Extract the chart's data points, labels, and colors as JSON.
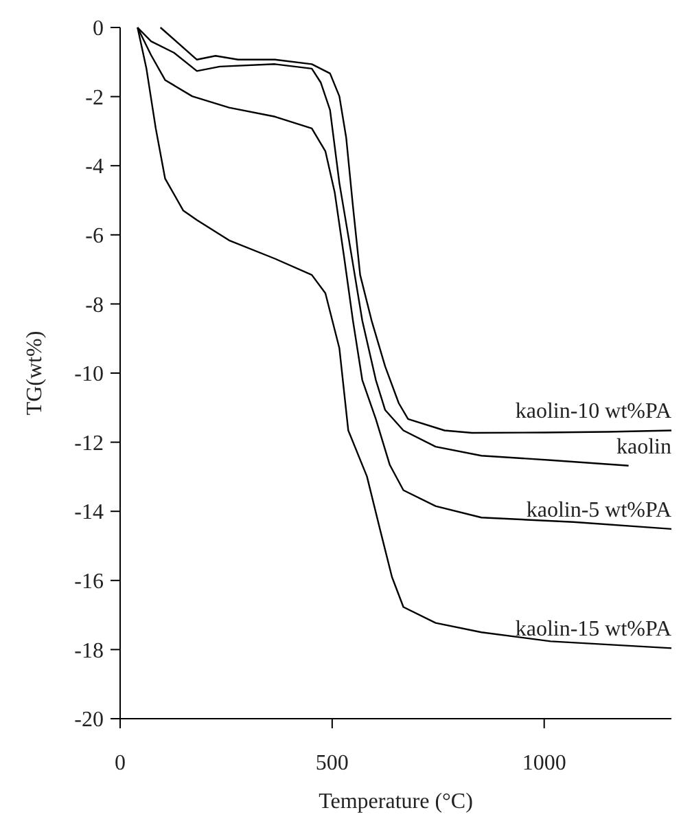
{
  "chart_data": {
    "type": "line",
    "xlabel": "Temperature (°C)",
    "ylabel": "TG(wt%)",
    "xlim": [
      0,
      1300
    ],
    "ylim": [
      -20,
      0
    ],
    "xticks": [
      0,
      500,
      1000
    ],
    "yticks": [
      0,
      -2,
      -4,
      -6,
      -8,
      -10,
      -12,
      -14,
      -16,
      -18,
      -20
    ],
    "grid": false,
    "marker": "none",
    "line_style": "solid",
    "series": [
      {
        "name": "kaolin-10 wt%PA",
        "color": "#000000",
        "x": [
          95,
          181,
          225,
          278,
          365,
          452,
          495,
          517,
          533,
          549,
          566,
          593,
          625,
          657,
          679,
          765,
          830,
          1000,
          1150,
          1300
        ],
        "values": [
          0,
          -0.93,
          -0.82,
          -0.93,
          -0.93,
          -1.06,
          -1.33,
          -1.99,
          -3.18,
          -5.17,
          -7.16,
          -8.48,
          -9.81,
          -10.87,
          -11.33,
          -11.66,
          -11.73,
          -11.72,
          -11.7,
          -11.66
        ]
      },
      {
        "name": "kaolin",
        "color": "#000000",
        "x": [
          41,
          73,
          127,
          181,
          235,
          365,
          452,
          473,
          495,
          517,
          539,
          571,
          603,
          625,
          668,
          744,
          852,
          1015,
          1199
        ],
        "values": [
          0,
          -0.4,
          -0.73,
          -1.26,
          -1.13,
          -1.06,
          -1.19,
          -1.59,
          -2.39,
          -4.5,
          -6.1,
          -8.48,
          -10.2,
          -11.07,
          -11.66,
          -12.13,
          -12.39,
          -12.52,
          -12.68
        ]
      },
      {
        "name": "kaolin-5 wt%PA",
        "color": "#000000",
        "x": [
          41,
          73,
          106,
          170,
          257,
          365,
          452,
          484,
          506,
          528,
          549,
          571,
          603,
          636,
          668,
          744,
          852,
          1069,
          1300
        ],
        "values": [
          0,
          -0.8,
          -1.52,
          -1.99,
          -2.32,
          -2.58,
          -2.92,
          -3.58,
          -4.77,
          -6.63,
          -8.48,
          -10.2,
          -11.33,
          -12.66,
          -13.39,
          -13.85,
          -14.18,
          -14.31,
          -14.51
        ]
      },
      {
        "name": "kaolin-15 wt%PA",
        "color": "#000000",
        "x": [
          41,
          62,
          84,
          106,
          149,
          181,
          257,
          365,
          452,
          484,
          517,
          538,
          582,
          614,
          641,
          668,
          744,
          852,
          1015,
          1300
        ],
        "values": [
          0,
          -1.19,
          -2.92,
          -4.37,
          -5.3,
          -5.57,
          -6.16,
          -6.69,
          -7.16,
          -7.69,
          -9.28,
          -11.66,
          -12.99,
          -14.58,
          -15.9,
          -16.77,
          -17.23,
          -17.5,
          -17.76,
          -17.96
        ]
      }
    ]
  }
}
